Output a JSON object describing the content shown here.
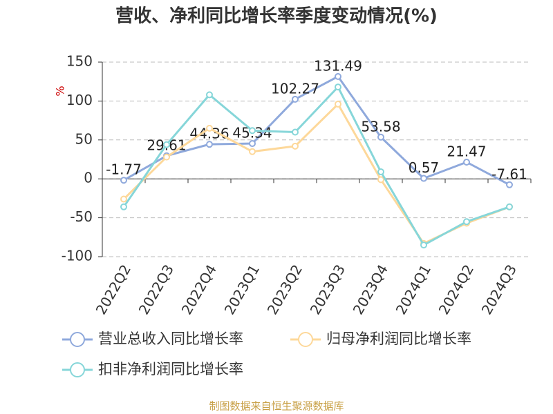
{
  "chart_data": {
    "type": "line",
    "title": "营收、净利同比增长率季度变动情况(%)",
    "y_label": "%",
    "categories": [
      "2022Q2",
      "2022Q3",
      "2022Q4",
      "2023Q1",
      "2023Q2",
      "2023Q3",
      "2023Q4",
      "2024Q1",
      "2024Q2",
      "2024Q3"
    ],
    "series": [
      {
        "name": "营业总收入同比增长率",
        "color": "#8fa9dc",
        "values": [
          -1.77,
          29.61,
          44.36,
          45.34,
          102.27,
          131.49,
          53.58,
          0.57,
          21.47,
          -7.61
        ],
        "data_labels": true
      },
      {
        "name": "归母净利润同比增长率",
        "color": "#fdd89a",
        "values": [
          -26,
          28,
          65,
          35,
          42,
          96,
          -1,
          -83,
          -57,
          -36
        ],
        "data_labels": false
      },
      {
        "name": "扣非净利润同比增长率",
        "color": "#86d6d9",
        "values": [
          -36,
          44,
          108,
          62,
          60,
          118,
          9,
          -85,
          -55,
          -36
        ],
        "data_labels": false
      }
    ],
    "ylim": [
      -100,
      150
    ],
    "yticks": [
      -100,
      -50,
      0,
      50,
      100,
      150
    ],
    "grid": true,
    "source": "制图数据来自恒生聚源数据库"
  }
}
